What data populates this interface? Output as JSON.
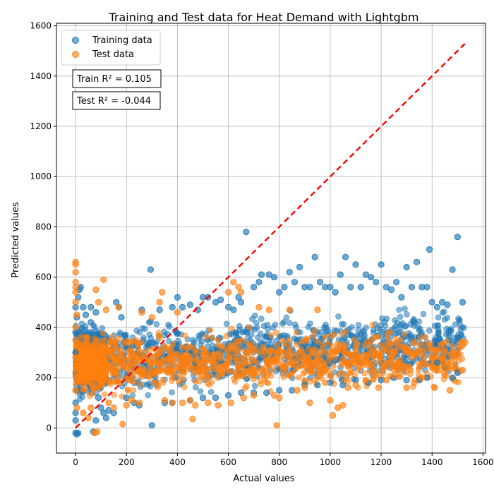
{
  "chart_data": {
    "type": "scatter",
    "title": "Training and Test data for Heat Demand with Lightgbm",
    "xlabel": "Actual values",
    "ylabel": "Predicted values",
    "xlim": [
      -75,
      1610
    ],
    "ylim": [
      -100,
      1610
    ],
    "xticks": [
      0,
      200,
      400,
      600,
      800,
      1000,
      1200,
      1400,
      1600
    ],
    "yticks": [
      0,
      200,
      400,
      600,
      800,
      1000,
      1200,
      1400,
      1600
    ],
    "grid": true,
    "legend_position": "top-left",
    "series": [
      {
        "name": "Training data",
        "color": "#1f77b4",
        "points": [
          [
            0,
            -20
          ],
          [
            5,
            -25
          ],
          [
            10,
            -20
          ],
          [
            0,
            30
          ],
          [
            0,
            60
          ],
          [
            0,
            100
          ],
          [
            5,
            150
          ],
          [
            0,
            220
          ],
          [
            0,
            300
          ],
          [
            0,
            380
          ],
          [
            5,
            440
          ],
          [
            0,
            480
          ],
          [
            10,
            520
          ],
          [
            20,
            560
          ],
          [
            15,
            550
          ],
          [
            30,
            480
          ],
          [
            40,
            450
          ],
          [
            60,
            420
          ],
          [
            60,
            480
          ],
          [
            70,
            -15
          ],
          [
            80,
            460
          ],
          [
            80,
            30
          ],
          [
            90,
            120
          ],
          [
            100,
            80
          ],
          [
            110,
            60
          ],
          [
            120,
            40
          ],
          [
            130,
            70
          ],
          [
            150,
            60
          ],
          [
            160,
            500
          ],
          [
            170,
            480
          ],
          [
            180,
            440
          ],
          [
            200,
            120
          ],
          [
            230,
            100
          ],
          [
            250,
            90
          ],
          [
            260,
            470
          ],
          [
            290,
            420
          ],
          [
            295,
            630
          ],
          [
            300,
            10
          ],
          [
            330,
            470
          ],
          [
            350,
            100
          ],
          [
            380,
            480
          ],
          [
            380,
            100
          ],
          [
            400,
            520
          ],
          [
            420,
            480
          ],
          [
            450,
            490
          ],
          [
            480,
            470
          ],
          [
            500,
            520
          ],
          [
            520,
            520
          ],
          [
            550,
            500
          ],
          [
            570,
            510
          ],
          [
            600,
            480
          ],
          [
            620,
            470
          ],
          [
            640,
            520
          ],
          [
            650,
            500
          ],
          [
            670,
            780
          ],
          [
            700,
            560
          ],
          [
            720,
            580
          ],
          [
            730,
            610
          ],
          [
            760,
            610
          ],
          [
            780,
            600
          ],
          [
            800,
            540
          ],
          [
            820,
            560
          ],
          [
            840,
            620
          ],
          [
            860,
            580
          ],
          [
            880,
            640
          ],
          [
            900,
            560
          ],
          [
            920,
            560
          ],
          [
            940,
            680
          ],
          [
            960,
            580
          ],
          [
            980,
            560
          ],
          [
            1000,
            560
          ],
          [
            1020,
            540
          ],
          [
            1040,
            610
          ],
          [
            1060,
            680
          ],
          [
            1080,
            560
          ],
          [
            1100,
            650
          ],
          [
            1120,
            560
          ],
          [
            1140,
            610
          ],
          [
            1160,
            600
          ],
          [
            1180,
            580
          ],
          [
            1200,
            650
          ],
          [
            1220,
            560
          ],
          [
            1240,
            550
          ],
          [
            1260,
            580
          ],
          [
            1280,
            520
          ],
          [
            1300,
            640
          ],
          [
            1320,
            560
          ],
          [
            1340,
            660
          ],
          [
            1360,
            560
          ],
          [
            1380,
            560
          ],
          [
            1390,
            710
          ],
          [
            1400,
            500
          ],
          [
            1420,
            480
          ],
          [
            1440,
            500
          ],
          [
            1460,
            490
          ],
          [
            1480,
            630
          ],
          [
            1500,
            760
          ],
          [
            1520,
            500
          ],
          [
            1500,
            220
          ],
          [
            1480,
            200
          ],
          [
            1450,
            240
          ],
          [
            1420,
            260
          ],
          [
            1380,
            200
          ],
          [
            1350,
            190
          ],
          [
            1300,
            190
          ],
          [
            1250,
            200
          ],
          [
            1200,
            190
          ],
          [
            1150,
            180
          ],
          [
            1100,
            190
          ],
          [
            1050,
            170
          ],
          [
            1000,
            180
          ],
          [
            950,
            170
          ],
          [
            900,
            170
          ],
          [
            850,
            150
          ],
          [
            800,
            150
          ],
          [
            750,
            140
          ],
          [
            700,
            140
          ],
          [
            650,
            140
          ],
          [
            600,
            130
          ],
          [
            550,
            120
          ],
          [
            500,
            120
          ],
          [
            450,
            110
          ]
        ]
      },
      {
        "name": "Test data",
        "color": "#ff7f0e",
        "points": [
          [
            0,
            660
          ],
          [
            0,
            650
          ],
          [
            0,
            620
          ],
          [
            0,
            580
          ],
          [
            0,
            560
          ],
          [
            0,
            540
          ],
          [
            0,
            500
          ],
          [
            5,
            450
          ],
          [
            0,
            400
          ],
          [
            0,
            350
          ],
          [
            0,
            280
          ],
          [
            0,
            220
          ],
          [
            0,
            150
          ],
          [
            5,
            80
          ],
          [
            30,
            60
          ],
          [
            50,
            40
          ],
          [
            60,
            80
          ],
          [
            75,
            -20
          ],
          [
            80,
            550
          ],
          [
            85,
            -15
          ],
          [
            90,
            500
          ],
          [
            110,
            590
          ],
          [
            120,
            470
          ],
          [
            130,
            100
          ],
          [
            150,
            80
          ],
          [
            170,
            480
          ],
          [
            185,
            15
          ],
          [
            200,
            90
          ],
          [
            220,
            110
          ],
          [
            250,
            100
          ],
          [
            260,
            460
          ],
          [
            300,
            440
          ],
          [
            330,
            500
          ],
          [
            340,
            540
          ],
          [
            350,
            110
          ],
          [
            380,
            100
          ],
          [
            400,
            460
          ],
          [
            420,
            100
          ],
          [
            450,
            110
          ],
          [
            460,
            35
          ],
          [
            470,
            90
          ],
          [
            520,
            100
          ],
          [
            560,
            90
          ],
          [
            600,
            540
          ],
          [
            610,
            100
          ],
          [
            620,
            580
          ],
          [
            640,
            560
          ],
          [
            650,
            540
          ],
          [
            660,
            120
          ],
          [
            700,
            130
          ],
          [
            720,
            480
          ],
          [
            760,
            470
          ],
          [
            780,
            130
          ],
          [
            790,
            10
          ],
          [
            800,
            120
          ],
          [
            840,
            470
          ],
          [
            870,
            150
          ],
          [
            900,
            160
          ],
          [
            920,
            100
          ],
          [
            950,
            470
          ],
          [
            980,
            180
          ],
          [
            1000,
            110
          ],
          [
            1010,
            50
          ],
          [
            1030,
            80
          ],
          [
            1050,
            90
          ],
          [
            1070,
            160
          ],
          [
            1100,
            170
          ],
          [
            1140,
            190
          ],
          [
            1190,
            160
          ],
          [
            1220,
            190
          ],
          [
            1250,
            210
          ],
          [
            1300,
            160
          ],
          [
            1330,
            180
          ],
          [
            1360,
            200
          ],
          [
            1400,
            240
          ],
          [
            1410,
            160
          ],
          [
            1450,
            240
          ],
          [
            1470,
            150
          ],
          [
            1490,
            300
          ],
          [
            1520,
            230
          ],
          [
            1530,
            340
          ],
          [
            1520,
            330
          ],
          [
            1480,
            300
          ]
        ]
      }
    ],
    "reference_line": {
      "style": "dashed",
      "color": "#ff0000",
      "from": [
        0,
        0
      ],
      "to": [
        1530,
        1530
      ]
    },
    "annotations": [
      {
        "text": "Train R² = 0.105"
      },
      {
        "text": "Test R² = -0.044"
      }
    ]
  }
}
